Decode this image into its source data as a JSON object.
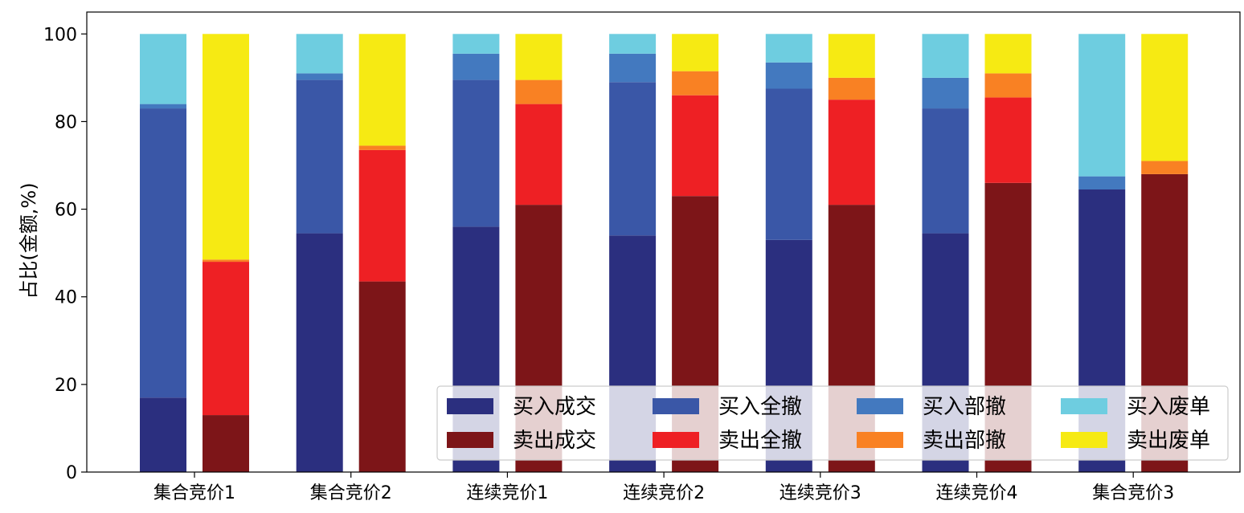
{
  "chart_data": {
    "type": "bar",
    "stacked": true,
    "title": "",
    "xlabel": "",
    "ylabel": "占比(金额,%)",
    "ylim": [
      0,
      105
    ],
    "yticks": [
      0,
      20,
      40,
      60,
      80,
      100
    ],
    "grid": false,
    "legend_position": "lower-right",
    "legend_columns": 4,
    "categories": [
      "集合竞价1",
      "集合竞价2",
      "连续竞价1",
      "连续竞价2",
      "连续竞价3",
      "连续竞价4",
      "集合竞价3"
    ],
    "groups": [
      {
        "side": "buy",
        "series": [
          {
            "name": "买入成交",
            "color": "#2b2f7f",
            "values": [
              17.0,
              54.5,
              56.0,
              54.0,
              53.0,
              54.5,
              64.5
            ]
          },
          {
            "name": "买入全撤",
            "color": "#3a57a7",
            "values": [
              66.0,
              35.0,
              33.5,
              35.0,
              34.5,
              28.5,
              0.0
            ]
          },
          {
            "name": "买入部撤",
            "color": "#4379bf",
            "values": [
              1.0,
              1.5,
              6.0,
              6.5,
              6.0,
              7.0,
              3.0
            ]
          },
          {
            "name": "买入废单",
            "color": "#6ecde0",
            "values": [
              16.0,
              9.0,
              4.5,
              4.5,
              6.5,
              10.0,
              32.5
            ]
          }
        ]
      },
      {
        "side": "sell",
        "series": [
          {
            "name": "卖出成交",
            "color": "#7d1518",
            "values": [
              13.0,
              43.5,
              61.0,
              63.0,
              61.0,
              66.0,
              68.0
            ]
          },
          {
            "name": "卖出全撤",
            "color": "#ee2024",
            "values": [
              35.0,
              30.0,
              23.0,
              23.0,
              24.0,
              19.5,
              0.0
            ]
          },
          {
            "name": "卖出部撤",
            "color": "#f98123",
            "values": [
              0.5,
              1.0,
              5.5,
              5.5,
              5.0,
              5.5,
              3.0
            ]
          },
          {
            "name": "卖出废单",
            "color": "#f6ea13",
            "values": [
              51.5,
              25.5,
              10.5,
              8.5,
              10.0,
              9.0,
              29.0
            ]
          }
        ]
      }
    ],
    "legend_order": [
      "买入成交",
      "买入全撤",
      "买入部撤",
      "买入废单",
      "卖出成交",
      "卖出全撤",
      "卖出部撤",
      "卖出废单"
    ]
  }
}
